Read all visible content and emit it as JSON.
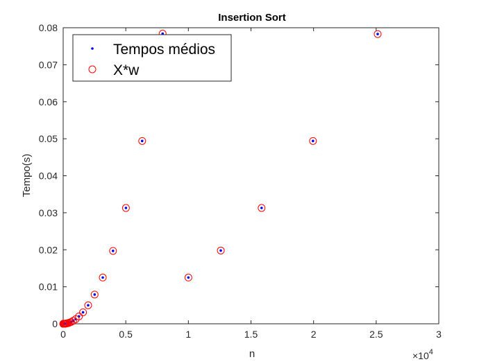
{
  "chart_data": {
    "type": "scatter",
    "title": "Insertion Sort",
    "xlabel": "n",
    "ylabel": "Tempo(s)",
    "x_exponent_label": "×10",
    "x_exponent": "4",
    "xlim": [
      0,
      30000
    ],
    "ylim": [
      0,
      0.08
    ],
    "x_ticks": [
      0,
      5000,
      10000,
      15000,
      20000,
      25000,
      30000
    ],
    "x_tick_labels": [
      "0",
      "0.5",
      "1",
      "1.5",
      "2",
      "2.5",
      "3"
    ],
    "y_ticks": [
      0,
      0.01,
      0.02,
      0.03,
      0.04,
      0.05,
      0.06,
      0.07,
      0.08
    ],
    "y_tick_labels": [
      "0",
      "0.01",
      "0.02",
      "0.03",
      "0.04",
      "0.05",
      "0.06",
      "0.07",
      "0.08"
    ],
    "grid": false,
    "legend_position": "top-left",
    "series": [
      {
        "name": "Tempos médios",
        "marker": "dot",
        "color": "#0000ff",
        "x": [
          10,
          13,
          16,
          20,
          25,
          32,
          40,
          50,
          63,
          79,
          100,
          126,
          158,
          200,
          251,
          316,
          398,
          501,
          631,
          794,
          1000,
          1259,
          1585,
          1995,
          2512,
          3162,
          3981,
          5012,
          6310,
          7943,
          10000,
          12589,
          15849,
          19953,
          25119
        ],
        "y": [
          1e-07,
          2e-07,
          3e-07,
          5e-07,
          8e-07,
          1.3e-06,
          2e-06,
          3e-06,
          5e-06,
          8e-06,
          1.25e-05,
          2e-05,
          3e-05,
          5e-05,
          8e-05,
          0.000125,
          0.0002,
          0.0003,
          0.0005,
          0.0008,
          0.00125,
          0.002,
          0.0031,
          0.005,
          0.0079,
          0.0125,
          0.0197,
          0.0313,
          0.0494,
          0.0784,
          0.0125,
          0.0198,
          0.0313,
          0.0494,
          0.0783
        ]
      },
      {
        "name": "X*w",
        "marker": "circle",
        "color": "#ff0000",
        "x": [
          10,
          13,
          16,
          20,
          25,
          32,
          40,
          50,
          63,
          79,
          100,
          126,
          158,
          200,
          251,
          316,
          398,
          501,
          631,
          794,
          1000,
          1259,
          1585,
          1995,
          2512,
          3162,
          3981,
          5012,
          6310,
          7943,
          10000,
          12589,
          15849,
          19953,
          25119
        ],
        "y": [
          1e-07,
          2e-07,
          3e-07,
          5e-07,
          8e-07,
          1.3e-06,
          2e-06,
          3e-06,
          5e-06,
          8e-06,
          1.25e-05,
          2e-05,
          3e-05,
          5e-05,
          8e-05,
          0.000125,
          0.0002,
          0.0003,
          0.0005,
          0.0008,
          0.00125,
          0.002,
          0.0031,
          0.005,
          0.0079,
          0.0125,
          0.0197,
          0.0313,
          0.0494,
          0.0784,
          0.0125,
          0.0198,
          0.0313,
          0.0494,
          0.0783
        ]
      }
    ]
  }
}
